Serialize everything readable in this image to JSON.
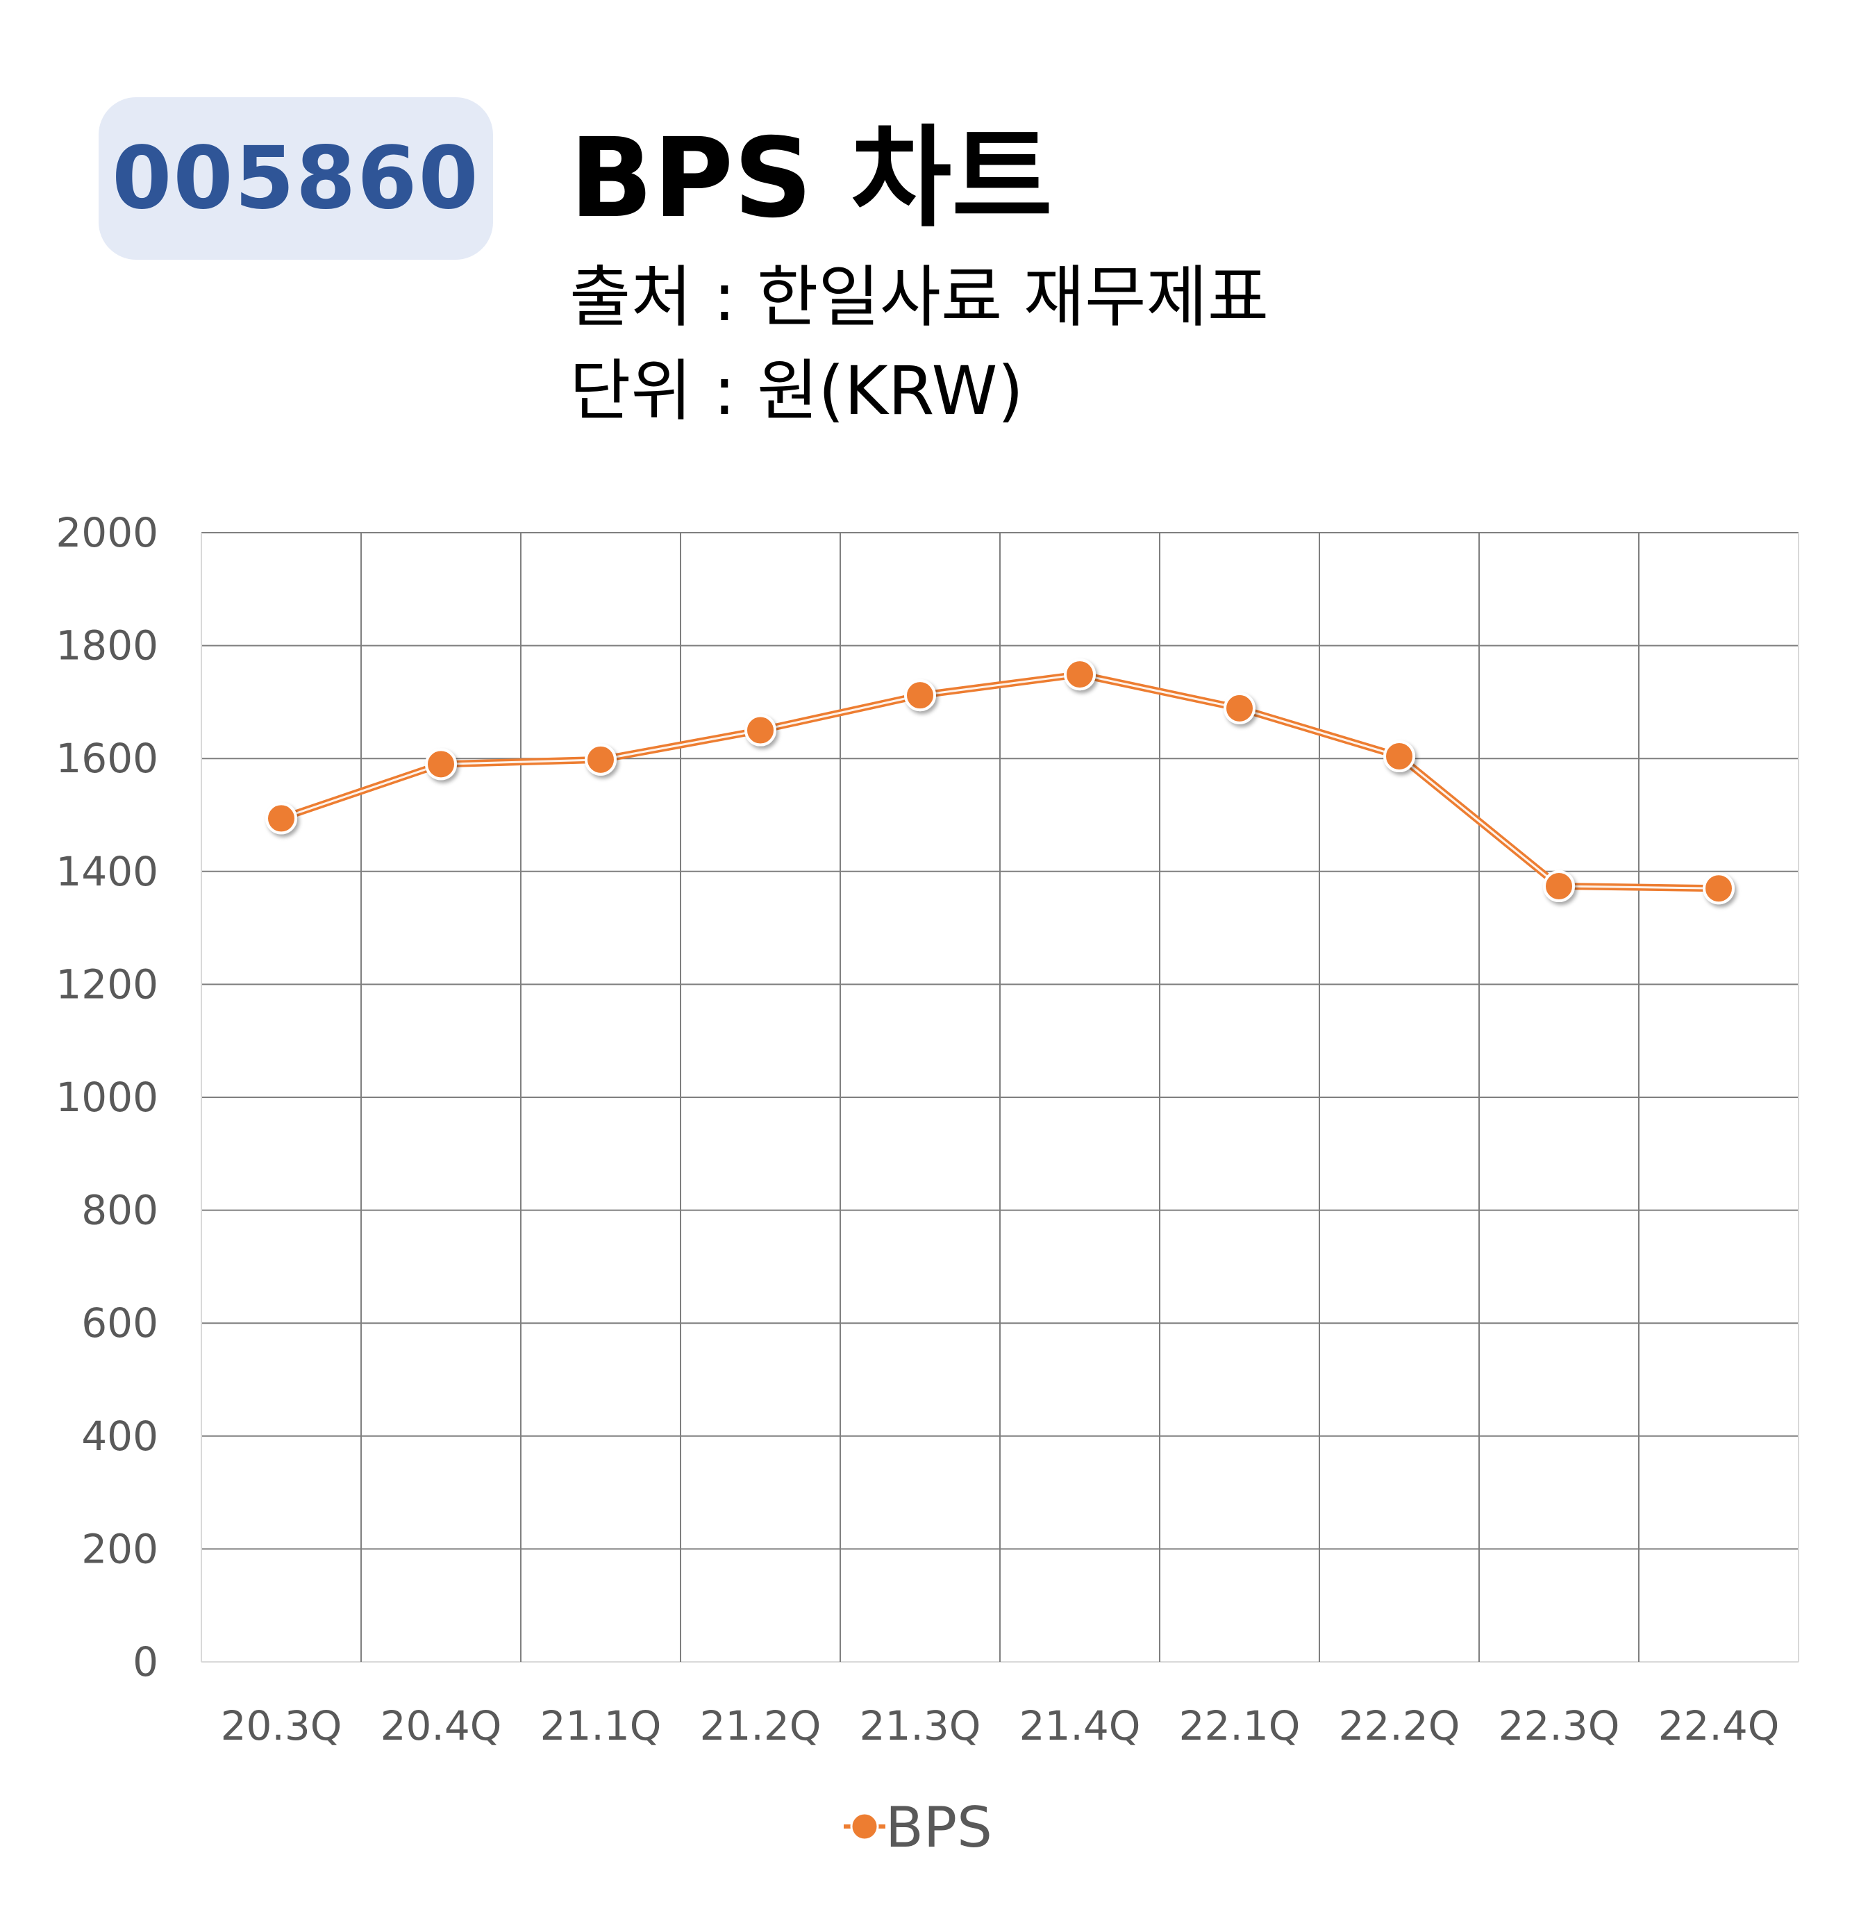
{
  "header": {
    "ticker": "005860",
    "title": "BPS 차트",
    "source": "출처 : 한일사료 재무제표",
    "unit": "단위 : 원(KRW)"
  },
  "colors": {
    "badge_bg": "#e4eaf6",
    "badge_text": "#2f5597",
    "series": "#ed7d31",
    "grid": "#7f7f7f",
    "tick_text": "#595959"
  },
  "chart_data": {
    "type": "line",
    "categories": [
      "20.3Q",
      "20.4Q",
      "21.1Q",
      "21.2Q",
      "21.3Q",
      "21.4Q",
      "22.1Q",
      "22.2Q",
      "22.3Q",
      "22.4Q"
    ],
    "series": [
      {
        "name": "BPS",
        "values": [
          1494,
          1590,
          1598,
          1650,
          1712,
          1749,
          1689,
          1604,
          1374,
          1370
        ]
      }
    ],
    "yticks": [
      0,
      200,
      400,
      600,
      800,
      1000,
      1200,
      1400,
      1600,
      1800,
      2000
    ],
    "ylim": [
      0,
      2000
    ],
    "grid": true,
    "legend_position": "bottom"
  }
}
